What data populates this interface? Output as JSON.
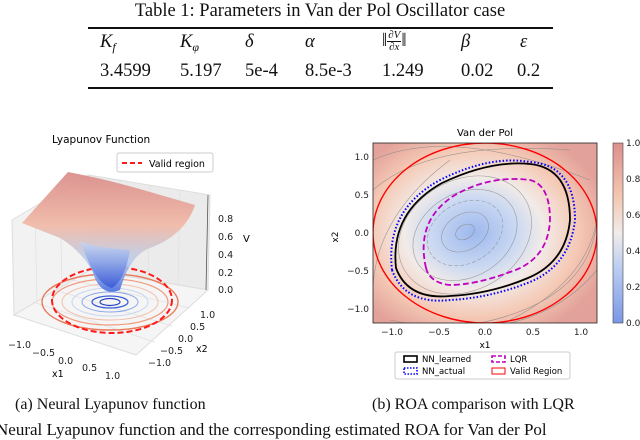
{
  "table": {
    "caption": "Table 1: Parameters in Van der Pol Oscillator case",
    "headers": [
      "K_f",
      "K_φ",
      "δ",
      "α",
      "‖∂V/∂x‖",
      "β",
      "ε"
    ],
    "header_parts": {
      "K": "K",
      "f": "f",
      "phi": "φ",
      "dV": "∂V",
      "dx": "∂x"
    },
    "values": [
      "3.4599",
      "5.197",
      "5e-4",
      "8.5e-3",
      "1.249",
      "0.02",
      "0.2"
    ]
  },
  "figure_a": {
    "title": "Lyapunov Function",
    "legend": "Valid region",
    "z_label": "V",
    "z_ticks": [
      "0.0",
      "0.2",
      "0.4",
      "0.6",
      "0.8"
    ],
    "x_label": "x1",
    "x_ticks": [
      "−1.0",
      "−0.5",
      "0.0",
      "0.5",
      "1.0"
    ],
    "y_label": "x2",
    "y_ticks": [
      "−1.0",
      "−0.5",
      "0.0",
      "0.5",
      "1.0"
    ],
    "caption": "(a) Neural Lyapunov function"
  },
  "figure_b": {
    "title": "Van der Pol",
    "x_label": "x1",
    "y_label": "x2",
    "x_ticks": [
      "−1.0",
      "−0.5",
      "0.0",
      "0.5",
      "1.0"
    ],
    "y_ticks": [
      "1.0",
      "0.5",
      "0.0",
      "−0.5",
      "−1.0"
    ],
    "colorbar_ticks": [
      "1.0",
      "0.8",
      "0.6",
      "0.4",
      "0.2",
      "0.0"
    ],
    "legend": [
      "NN_learned",
      "NN_actual",
      "LQR",
      "Valid Region"
    ],
    "colors": {
      "nn_learned": "#000000",
      "nn_actual": "#0000ff",
      "lqr": "#bf00bf",
      "valid": "#ff0000"
    },
    "caption": "(b) ROA comparison with LQR"
  },
  "figure_caption": "Neural Lyapunov function and the corresponding estimated ROA for Van der Pol"
}
